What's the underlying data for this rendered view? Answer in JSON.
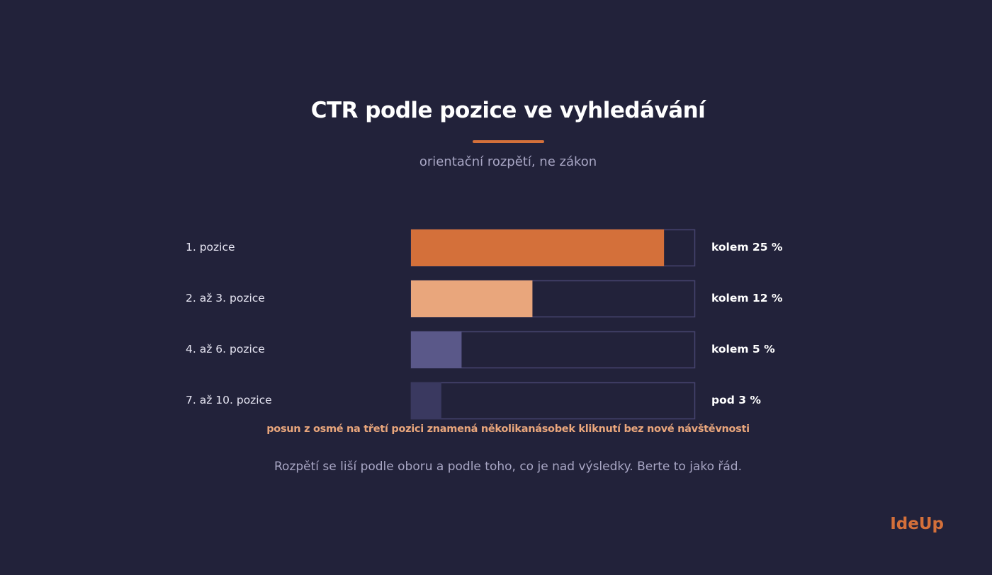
{
  "colors": {
    "background": "#22223a",
    "accent": "#d4703a",
    "accent_light": "#e9a67c",
    "muted": "#5a5889",
    "dim": "#3a3960",
    "track_border": "#46446f",
    "note": "#e9a67c",
    "logo": "#d4703a"
  },
  "header": {
    "title": "CTR podle pozice ve vyhledávání",
    "subtitle": "orientační rozpětí, ne zákon"
  },
  "chart_data": {
    "type": "bar",
    "orientation": "horizontal",
    "title": "CTR podle pozice ve vyhledávání",
    "subtitle": "orientační rozpětí, ne zákon",
    "categories": [
      "1. pozice",
      "2. až 3. pozice",
      "4. až 6. pozice",
      "7. až 10. pozice"
    ],
    "values": [
      25,
      12,
      5,
      3
    ],
    "value_labels": [
      "kolem 25 %",
      "kolem 12 %",
      "kolem 5 %",
      "pod 3 %"
    ],
    "unit": "%",
    "xlim": [
      0,
      28
    ],
    "bar_colors": [
      "#d4703a",
      "#e9a67c",
      "#5a5889",
      "#3a3960"
    ],
    "grid": false,
    "legend": "none"
  },
  "note": "posun z osmé na třetí pozici znamená několikanásobek kliknutí bez nové návštěvnosti",
  "footer": "Rozpětí se liší podle oboru a podle toho, co je nad výsledky. Berte to jako řád.",
  "logo": "IdeUp"
}
